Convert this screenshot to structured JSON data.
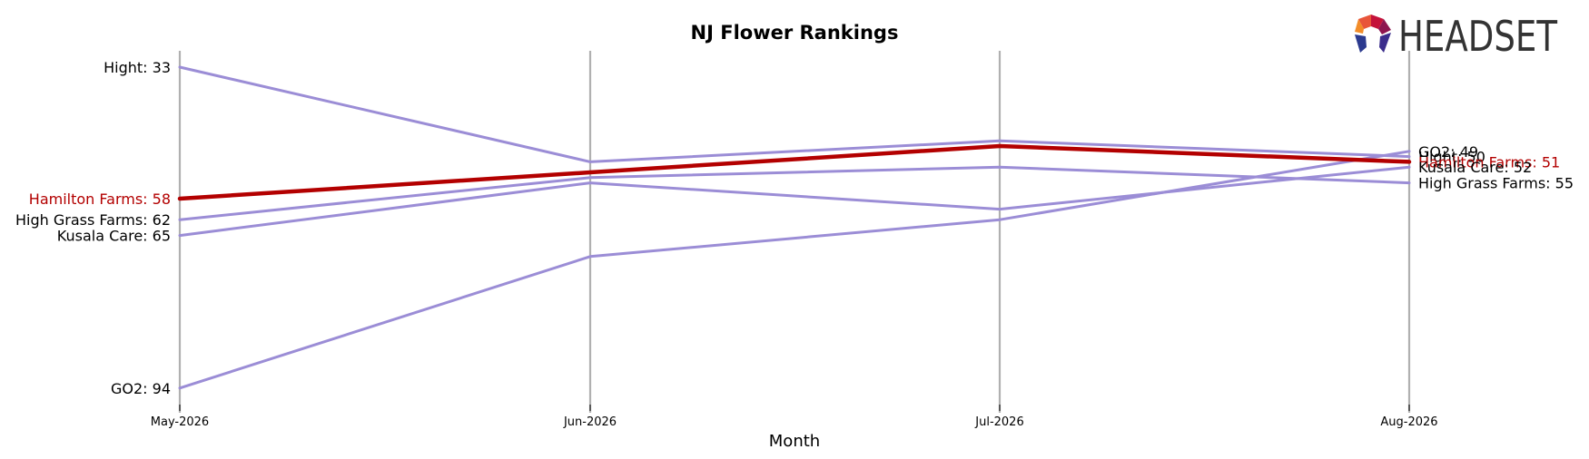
{
  "chart_data": {
    "type": "line",
    "title": "NJ Flower Rankings",
    "xlabel": "Month",
    "ylabel": "",
    "x": [
      "May-2026",
      "Jun-2026",
      "Jul-2026",
      "Aug-2026"
    ],
    "y_inverted": true,
    "ylim": [
      31,
      96
    ],
    "grid": "vertical lines at each month",
    "series": [
      {
        "name": "Hamilton Farms",
        "values": [
          58,
          53,
          48,
          51
        ],
        "highlight": true,
        "color": "#b30000"
      },
      {
        "name": "Hight",
        "values": [
          33,
          51,
          47,
          50
        ],
        "color": "#9b8dd6"
      },
      {
        "name": "High Grass Farms",
        "values": [
          62,
          54,
          52,
          55
        ],
        "color": "#9b8dd6"
      },
      {
        "name": "Kusala Care",
        "values": [
          65,
          55,
          60,
          52
        ],
        "color": "#9b8dd6"
      },
      {
        "name": "GO2",
        "values": [
          94,
          69,
          62,
          49
        ],
        "color": "#9b8dd6"
      }
    ],
    "start_labels": [
      {
        "text": "Hight: 33",
        "value": 33,
        "highlight": false
      },
      {
        "text": "Hamilton Farms: 58",
        "value": 58,
        "highlight": true
      },
      {
        "text": "High Grass Farms: 62",
        "value": 62,
        "highlight": false
      },
      {
        "text": "Kusala Care: 65",
        "value": 65,
        "highlight": false
      },
      {
        "text": "GO2: 94",
        "value": 94,
        "highlight": false
      }
    ],
    "end_labels": [
      {
        "text": "GO2: 49",
        "value": 49,
        "highlight": false
      },
      {
        "text": "Hight: 50",
        "value": 50,
        "highlight": false
      },
      {
        "text": "Hamilton Farms: 51",
        "value": 51,
        "highlight": true
      },
      {
        "text": "Kusala Care: 52",
        "value": 52,
        "highlight": false
      },
      {
        "text": "High Grass Farms: 55",
        "value": 55,
        "highlight": false
      }
    ]
  },
  "logo": {
    "text": "HEADSET"
  },
  "colors": {
    "highlight": "#b30000",
    "other": "#9b8dd6",
    "grid": "#b0b0b0",
    "text": "#000000"
  }
}
